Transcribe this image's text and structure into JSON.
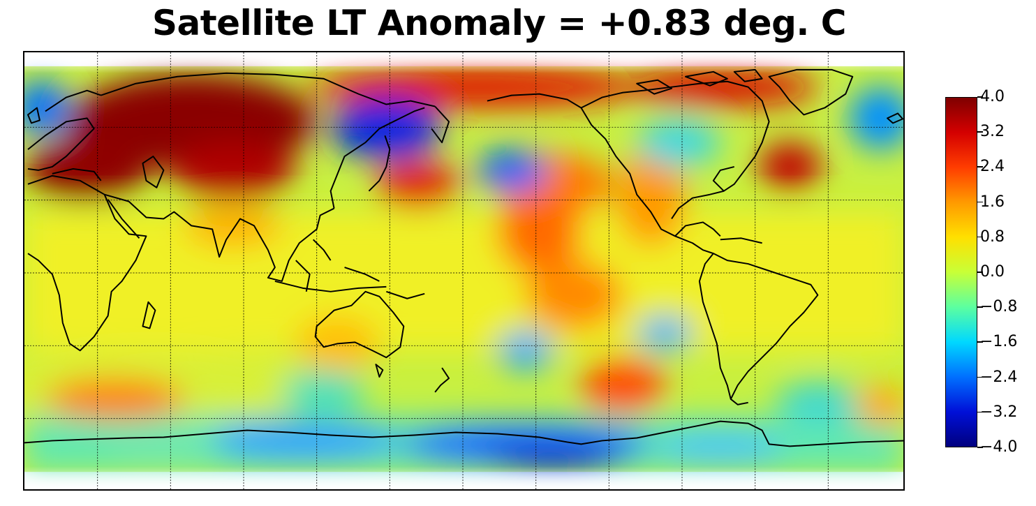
{
  "title": "Satellite LT Anomaly = +0.83 deg. C",
  "colorbar": {
    "ticks": [
      "4.0",
      "3.2",
      "2.4",
      "1.6",
      "0.8",
      "0.0",
      "−0.8",
      "−1.6",
      "−2.4",
      "−3.2",
      "−4.0"
    ],
    "min": -4.0,
    "max": 4.0,
    "colormap": "jet",
    "stops": [
      "#7f0000",
      "#d40000",
      "#ff3d00",
      "#ff9a00",
      "#ffe000",
      "#c8ff37",
      "#5cffa0",
      "#00d8ff",
      "#0070ff",
      "#0010d8",
      "#00007f"
    ]
  },
  "map": {
    "projection": "plate carree",
    "center_longitude": 180,
    "gridlines": "dotted",
    "coastlines": "black"
  }
}
